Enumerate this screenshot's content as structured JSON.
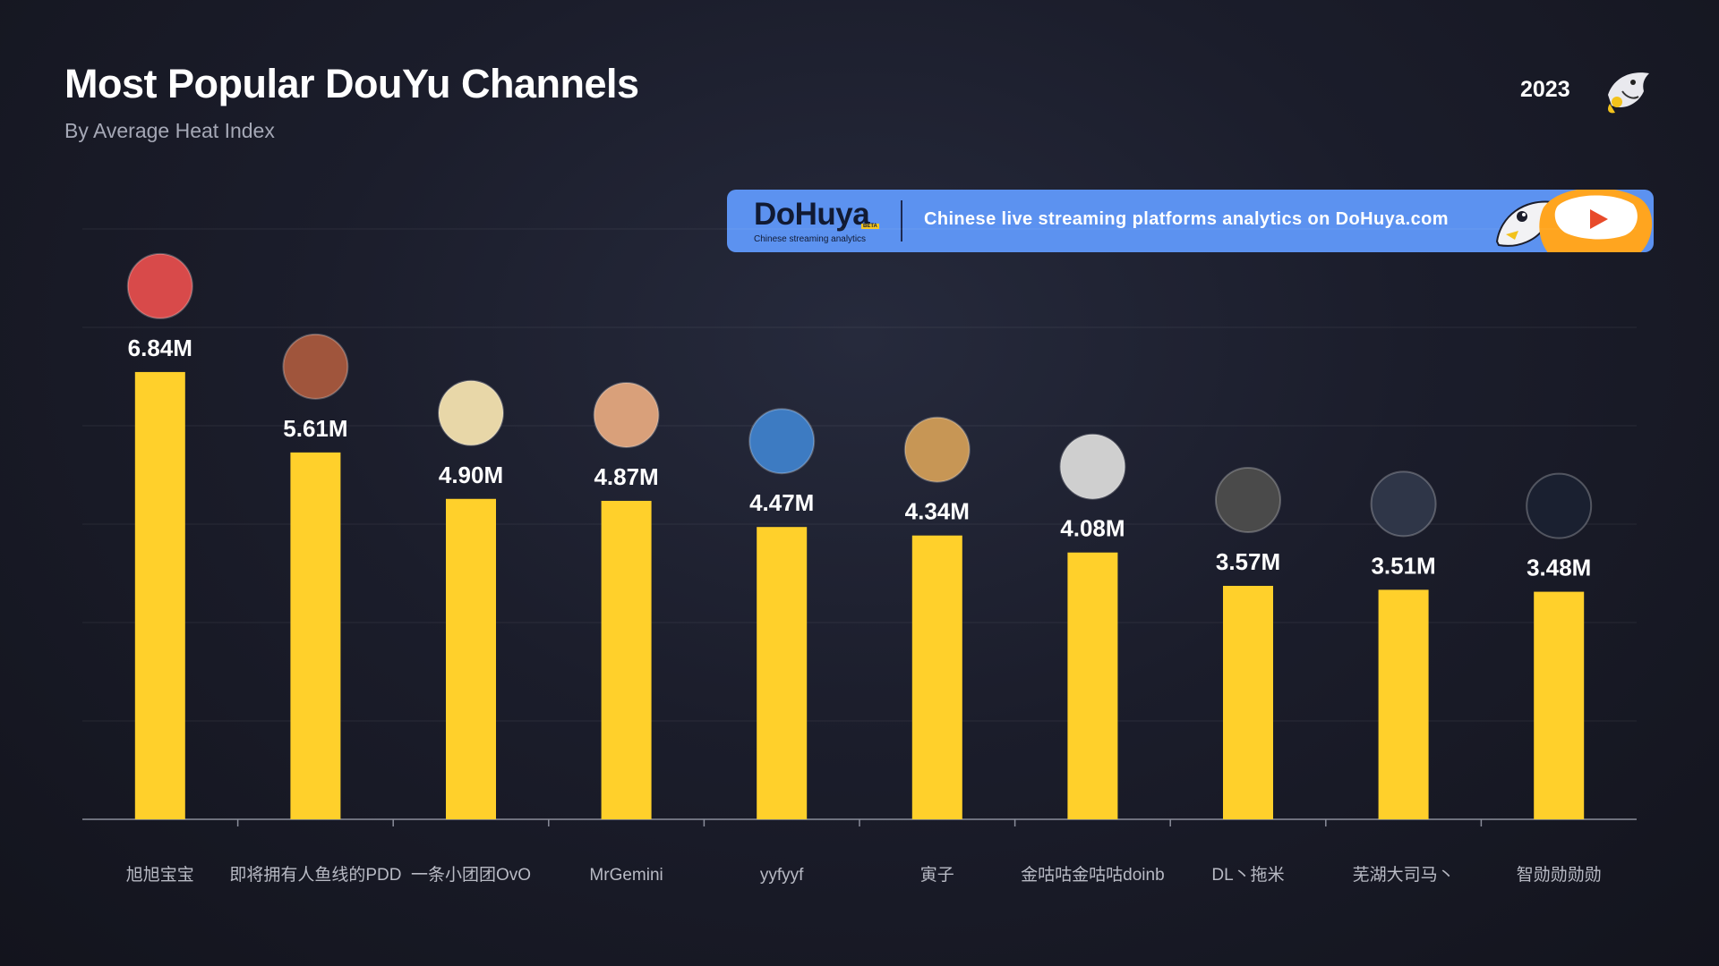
{
  "header": {
    "title": "Most Popular DouYu Channels",
    "subtitle": "By Average Heat Index",
    "year": "2023"
  },
  "banner": {
    "brand": "DoHuya",
    "brand_badge": "BETA",
    "brand_tagline": "Chinese streaming analytics",
    "text": "Chinese live streaming platforms analytics on DoHuya.com"
  },
  "colors": {
    "bar": "#ffd02b",
    "banner": "#5c92f0",
    "background": "#1b1d2b"
  },
  "chart_data": {
    "type": "bar",
    "categories": [
      "旭旭宝宝",
      "即将拥有人鱼线的PDD",
      "一条小团团OvO",
      "MrGemini",
      "yyfyyf",
      "寅子",
      "金咕咕金咕咕doinb",
      "DL丶拖米",
      "芜湖大司马丶",
      "智勋勋勋勋"
    ],
    "values": [
      6.84,
      5.61,
      4.9,
      4.87,
      4.47,
      4.34,
      4.08,
      3.57,
      3.51,
      3.48
    ],
    "value_labels": [
      "6.84M",
      "5.61M",
      "4.90M",
      "4.87M",
      "4.47M",
      "4.34M",
      "4.08M",
      "3.57M",
      "3.51M",
      "3.48M"
    ],
    "avatar_colors": [
      "#d84a4a",
      "#a0553c",
      "#e8d7a8",
      "#d9a07a",
      "#3d7bc2",
      "#c79655",
      "#cfcfcf",
      "#4a4a4a",
      "#2f3648",
      "#1a2030"
    ],
    "ylim": [
      0,
      9
    ],
    "grid": true,
    "legend": "none"
  }
}
